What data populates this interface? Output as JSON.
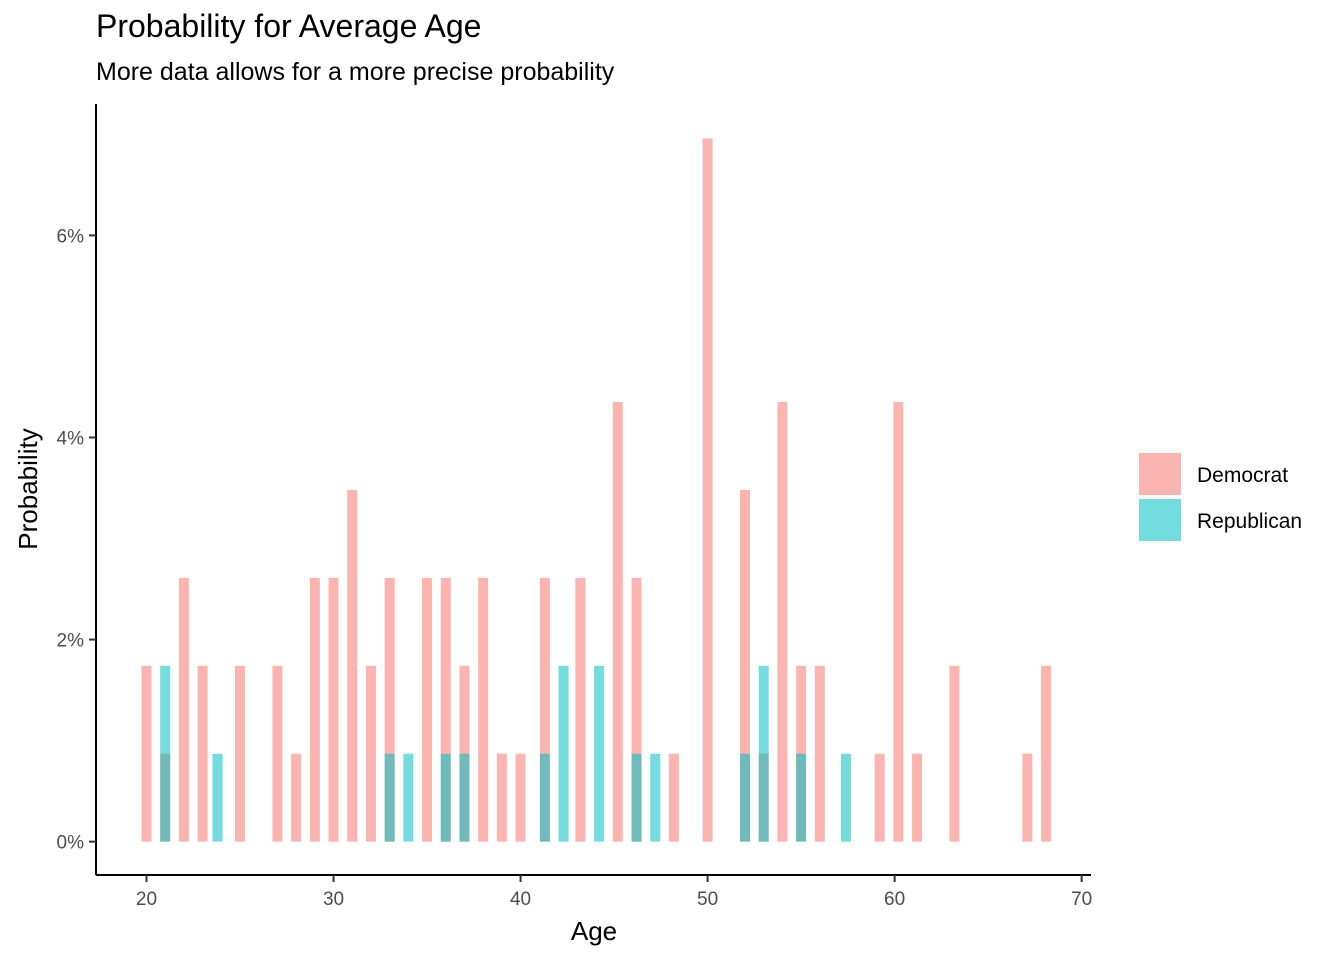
{
  "chart_data": {
    "type": "bar",
    "title": "Probability for Average Age",
    "subtitle": "More data allows for a more precise probability",
    "xlabel": "Age",
    "ylabel": "Probability",
    "xlim": [
      17.3,
      70.5
    ],
    "ylim": [
      -0.0033,
      0.073
    ],
    "x_ticks": [
      20,
      30,
      40,
      50,
      60,
      70
    ],
    "y_ticks": [
      0,
      0.02,
      0.04,
      0.06
    ],
    "y_tick_labels": [
      "0%",
      "2%",
      "4%",
      "6%"
    ],
    "grid": false,
    "legend_position": "right",
    "series": [
      {
        "name": "Democrat",
        "color": "#F8766D",
        "points": [
          {
            "x": 20,
            "y": 0.0174
          },
          {
            "x": 21,
            "y": 0.0087
          },
          {
            "x": 22,
            "y": 0.0261
          },
          {
            "x": 23,
            "y": 0.0174
          },
          {
            "x": 25,
            "y": 0.0174
          },
          {
            "x": 27,
            "y": 0.0174
          },
          {
            "x": 28,
            "y": 0.0087
          },
          {
            "x": 29,
            "y": 0.0261
          },
          {
            "x": 30,
            "y": 0.0261
          },
          {
            "x": 31,
            "y": 0.0348
          },
          {
            "x": 32,
            "y": 0.0174
          },
          {
            "x": 33,
            "y": 0.0261
          },
          {
            "x": 35,
            "y": 0.0261
          },
          {
            "x": 36,
            "y": 0.0261
          },
          {
            "x": 37,
            "y": 0.0174
          },
          {
            "x": 38,
            "y": 0.0261
          },
          {
            "x": 39,
            "y": 0.0087
          },
          {
            "x": 40,
            "y": 0.0087
          },
          {
            "x": 41.3,
            "y": 0.0261
          },
          {
            "x": 43.2,
            "y": 0.0261
          },
          {
            "x": 45.2,
            "y": 0.0435
          },
          {
            "x": 46.2,
            "y": 0.0261
          },
          {
            "x": 48.2,
            "y": 0.0087
          },
          {
            "x": 50,
            "y": 0.0696
          },
          {
            "x": 52,
            "y": 0.0348
          },
          {
            "x": 53,
            "y": 0.0087
          },
          {
            "x": 54,
            "y": 0.0435
          },
          {
            "x": 55,
            "y": 0.0174
          },
          {
            "x": 56,
            "y": 0.0174
          },
          {
            "x": 59.2,
            "y": 0.0087
          },
          {
            "x": 60.2,
            "y": 0.0435
          },
          {
            "x": 61.2,
            "y": 0.0087
          },
          {
            "x": 63.2,
            "y": 0.0174
          },
          {
            "x": 67.1,
            "y": 0.0087
          },
          {
            "x": 68.1,
            "y": 0.0174
          }
        ]
      },
      {
        "name": "Republican",
        "color": "#00BFC4",
        "points": [
          {
            "x": 21,
            "y": 0.0174
          },
          {
            "x": 23.8,
            "y": 0.0087
          },
          {
            "x": 33,
            "y": 0.0087
          },
          {
            "x": 34,
            "y": 0.0087
          },
          {
            "x": 36,
            "y": 0.0087
          },
          {
            "x": 37,
            "y": 0.0087
          },
          {
            "x": 41.3,
            "y": 0.0087
          },
          {
            "x": 42.3,
            "y": 0.0174
          },
          {
            "x": 44.2,
            "y": 0.0174
          },
          {
            "x": 46.2,
            "y": 0.0087
          },
          {
            "x": 47.2,
            "y": 0.0087
          },
          {
            "x": 52,
            "y": 0.0087
          },
          {
            "x": 53,
            "y": 0.0174
          },
          {
            "x": 55,
            "y": 0.0087
          },
          {
            "x": 57.4,
            "y": 0.0087
          }
        ]
      }
    ]
  }
}
